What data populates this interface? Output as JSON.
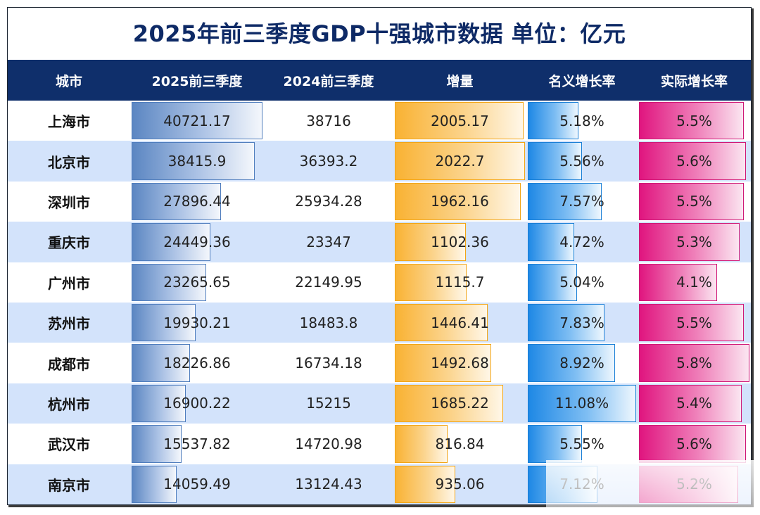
{
  "title": "2025年前三季度GDP十强城市数据   单位：亿元",
  "headers": {
    "city": "城市",
    "gdp2025": "2025前三季度",
    "gdp2024": "2024前三季度",
    "increase": "增量",
    "nominal": "名义增长率",
    "real": "实际增长率"
  },
  "colors": {
    "header_bg": "#0f2f6b",
    "title_color": "#0e2a66",
    "alt_row": "#d3e3fb",
    "bar_2025": "#5b86c2",
    "bar_increase": "#f9b233",
    "bar_nominal": "#1e88e5",
    "bar_real": "#e0157f"
  },
  "rows": [
    {
      "city": "上海市",
      "gdp2025": 40721.17,
      "gdp2025_text": "40721.17",
      "gdp2024_text": "38716",
      "increase": 2005.17,
      "increase_text": "2005.17",
      "nominal": 5.18,
      "nominal_text": "5.18%",
      "real": 5.5,
      "real_text": "5.5%"
    },
    {
      "city": "北京市",
      "gdp2025": 38415.9,
      "gdp2025_text": "38415.9",
      "gdp2024_text": "36393.2",
      "increase": 2022.7,
      "increase_text": "2022.7",
      "nominal": 5.56,
      "nominal_text": "5.56%",
      "real": 5.6,
      "real_text": "5.6%"
    },
    {
      "city": "深圳市",
      "gdp2025": 27896.44,
      "gdp2025_text": "27896.44",
      "gdp2024_text": "25934.28",
      "increase": 1962.16,
      "increase_text": "1962.16",
      "nominal": 7.57,
      "nominal_text": "7.57%",
      "real": 5.5,
      "real_text": "5.5%"
    },
    {
      "city": "重庆市",
      "gdp2025": 24449.36,
      "gdp2025_text": "24449.36",
      "gdp2024_text": "23347",
      "increase": 1102.36,
      "increase_text": "1102.36",
      "nominal": 4.72,
      "nominal_text": "4.72%",
      "real": 5.3,
      "real_text": "5.3%"
    },
    {
      "city": "广州市",
      "gdp2025": 23265.65,
      "gdp2025_text": "23265.65",
      "gdp2024_text": "22149.95",
      "increase": 1115.7,
      "increase_text": "1115.7",
      "nominal": 5.04,
      "nominal_text": "5.04%",
      "real": 4.1,
      "real_text": "4.1%"
    },
    {
      "city": "苏州市",
      "gdp2025": 19930.21,
      "gdp2025_text": "19930.21",
      "gdp2024_text": "18483.8",
      "increase": 1446.41,
      "increase_text": "1446.41",
      "nominal": 7.83,
      "nominal_text": "7.83%",
      "real": 5.5,
      "real_text": "5.5%"
    },
    {
      "city": "成都市",
      "gdp2025": 18226.86,
      "gdp2025_text": "18226.86",
      "gdp2024_text": "16734.18",
      "increase": 1492.68,
      "increase_text": "1492.68",
      "nominal": 8.92,
      "nominal_text": "8.92%",
      "real": 5.8,
      "real_text": "5.8%"
    },
    {
      "city": "杭州市",
      "gdp2025": 16900.22,
      "gdp2025_text": "16900.22",
      "gdp2024_text": "15215",
      "increase": 1685.22,
      "increase_text": "1685.22",
      "nominal": 11.08,
      "nominal_text": "11.08%",
      "real": 5.4,
      "real_text": "5.4%"
    },
    {
      "city": "武汉市",
      "gdp2025": 15537.82,
      "gdp2025_text": "15537.82",
      "gdp2024_text": "14720.98",
      "increase": 816.84,
      "increase_text": "816.84",
      "nominal": 5.55,
      "nominal_text": "5.55%",
      "real": 5.6,
      "real_text": "5.6%"
    },
    {
      "city": "南京市",
      "gdp2025": 14059.49,
      "gdp2025_text": "14059.49",
      "gdp2024_text": "13124.43",
      "increase": 935.06,
      "increase_text": "935.06",
      "nominal": 7.12,
      "nominal_text": "7.12%",
      "real": 5.2,
      "real_text": "5.2%"
    }
  ]
}
